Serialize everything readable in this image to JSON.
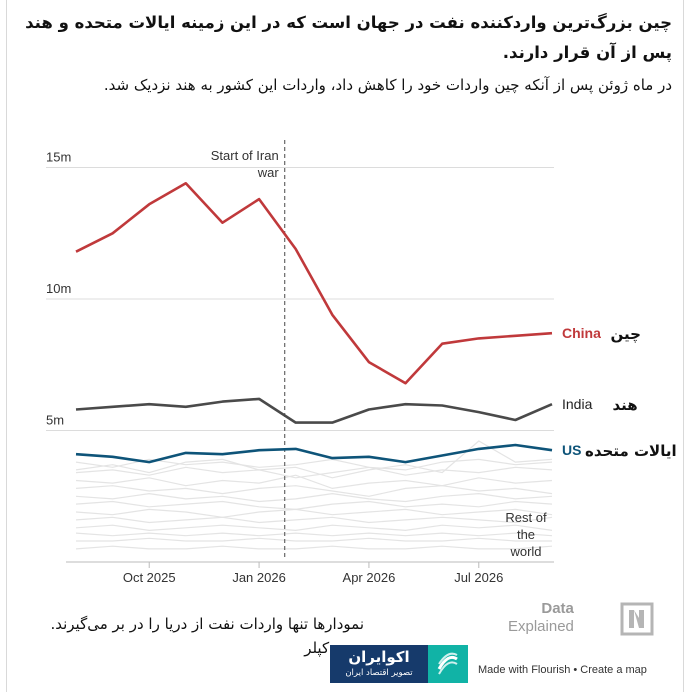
{
  "header": {
    "title": "چین بزرگ‌ترین واردکننده نفت در جهان است که در این زمینه ایالات متحده و هند پس از آن قرار دارند.",
    "subtitle": "در ماه ژوئن پس از آنکه چین واردات خود را کاهش داد، واردات این کشور به هند نزدیک شد."
  },
  "footer": {
    "note": "نمودارها تنها واردات نفت از دریا را در بر می‌گیرند.",
    "source": "منبع: کپلر",
    "watermark_line1": "Data",
    "watermark_line2": "Explained",
    "logo_name": "اکوایران",
    "logo_tagline": "تصویر اقتصاد ایران",
    "flourish": "Made with Flourish • Create a map"
  },
  "colors": {
    "China": "#c0393b",
    "India": "#4a4a4a",
    "US": "#0e5479",
    "Rest": "#e4e4e4",
    "annotation": "#666666"
  },
  "chart_data": {
    "type": "line",
    "title": "",
    "xlabel": "",
    "ylabel": "",
    "x_ticks": [
      "Oct 2025",
      "Jan 2026",
      "Apr 2026",
      "Jul 2026"
    ],
    "y_ticks": [
      "5m",
      "10m",
      "15m"
    ],
    "ylim": [
      0,
      16
    ],
    "grid": "horizontal",
    "x": [
      "2025-08",
      "2025-09",
      "2025-10",
      "2025-11",
      "2025-12",
      "2026-01",
      "2026-02",
      "2026-03",
      "2026-04",
      "2026-05",
      "2026-06",
      "2026-07",
      "2026-08",
      "2026-09"
    ],
    "series": [
      {
        "name": "China",
        "label_fa": "چین",
        "values": [
          11.8,
          12.5,
          13.6,
          14.4,
          12.9,
          13.8,
          11.9,
          9.4,
          7.6,
          6.8,
          8.3,
          8.5,
          8.6,
          8.7
        ]
      },
      {
        "name": "India",
        "label_fa": "هند",
        "values": [
          5.8,
          5.9,
          6.0,
          5.9,
          6.1,
          6.2,
          5.3,
          5.3,
          5.8,
          6.0,
          5.95,
          5.7,
          5.4,
          6.0
        ]
      },
      {
        "name": "US",
        "label_fa": "ایالات متحده",
        "values": [
          4.1,
          4.0,
          3.8,
          4.15,
          4.1,
          4.25,
          4.3,
          3.95,
          4.0,
          3.8,
          4.05,
          4.3,
          4.45,
          4.25
        ]
      }
    ],
    "rest_of_world_label": "Rest of the world",
    "rest_of_world": [
      [
        3.8,
        3.6,
        3.9,
        3.7,
        3.8,
        3.6,
        3.7,
        3.9,
        3.6,
        3.5,
        3.8,
        3.9,
        3.7,
        3.8
      ],
      [
        3.4,
        3.5,
        3.3,
        3.6,
        3.4,
        3.5,
        3.2,
        3.4,
        3.6,
        3.3,
        3.5,
        3.4,
        3.6,
        3.5
      ],
      [
        3.1,
        3.0,
        3.2,
        2.9,
        3.1,
        3.0,
        3.3,
        2.8,
        3.0,
        3.1,
        2.9,
        3.2,
        3.0,
        3.1
      ],
      [
        2.8,
        2.9,
        2.7,
        2.8,
        2.6,
        2.8,
        2.9,
        2.7,
        2.5,
        2.8,
        2.9,
        2.7,
        2.8,
        2.6
      ],
      [
        2.5,
        2.4,
        2.6,
        2.4,
        2.5,
        2.3,
        2.4,
        2.6,
        2.4,
        2.3,
        2.5,
        2.6,
        2.4,
        2.5
      ],
      [
        2.2,
        2.3,
        2.1,
        2.2,
        2.3,
        2.1,
        2.0,
        2.2,
        2.3,
        2.1,
        2.2,
        2.1,
        2.3,
        2.2
      ],
      [
        1.9,
        1.8,
        2.0,
        1.9,
        1.7,
        1.9,
        2.0,
        1.8,
        1.9,
        2.0,
        1.8,
        1.9,
        2.0,
        1.8
      ],
      [
        1.6,
        1.7,
        1.5,
        1.6,
        1.7,
        1.5,
        1.6,
        1.7,
        1.5,
        1.6,
        1.7,
        1.6,
        1.5,
        1.7
      ],
      [
        1.3,
        1.4,
        1.2,
        1.3,
        1.4,
        1.3,
        1.2,
        1.4,
        1.3,
        1.2,
        1.4,
        1.3,
        1.4,
        1.2
      ],
      [
        1.1,
        1.0,
        1.1,
        1.0,
        1.1,
        1.0,
        1.1,
        1.0,
        1.1,
        1.0,
        1.1,
        1.0,
        1.1,
        1.0
      ],
      [
        0.8,
        0.8,
        0.9,
        0.8,
        0.8,
        0.9,
        0.8,
        0.8,
        0.9,
        0.8,
        0.8,
        0.9,
        0.8,
        0.8
      ],
      [
        0.5,
        0.6,
        0.5,
        0.5,
        0.6,
        0.5,
        0.5,
        0.6,
        0.5,
        0.5,
        0.6,
        0.5,
        0.5,
        0.6
      ],
      [
        3.5,
        3.7,
        3.4,
        3.8,
        3.9,
        3.5,
        3.6,
        3.2,
        3.5,
        3.7,
        3.4,
        4.6,
        3.8,
        3.9
      ]
    ],
    "annotation": {
      "x": "2026-02",
      "label": "Start of Iran war"
    }
  }
}
